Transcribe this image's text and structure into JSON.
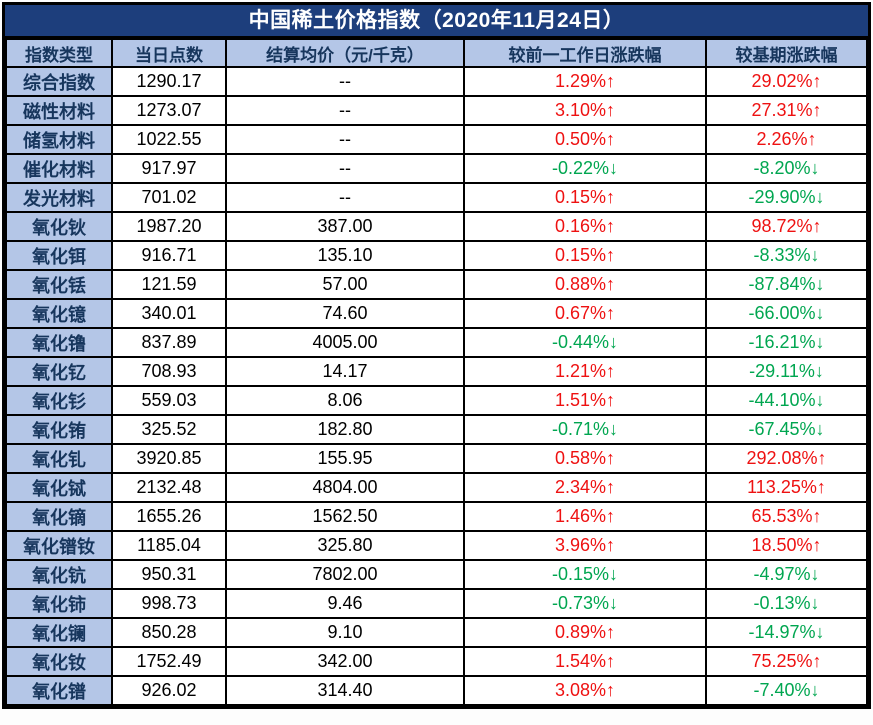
{
  "title": "中国稀土价格指数（2020年11月24日）",
  "colors": {
    "title_bg": "#1d3e7c",
    "header_bg": "#b4c6e7",
    "header_fg": "#17365d",
    "up_red": "#ee1111",
    "down_green": "#00a650",
    "border": "#000000"
  },
  "chart_data": {
    "type": "table",
    "title": "中国稀土价格指数（2020年11月24日）",
    "columns": [
      "指数类型",
      "当日点数",
      "结算均价（元/千克）",
      "较前一工作日涨跌幅",
      "较基期涨跌幅"
    ],
    "rows": [
      [
        "综合指数",
        "1290.17",
        "--",
        "1.29%↑",
        "29.02%↑"
      ],
      [
        "磁性材料",
        "1273.07",
        "--",
        "3.10%↑",
        "27.31%↑"
      ],
      [
        "储氢材料",
        "1022.55",
        "--",
        "0.50%↑",
        "2.26%↑"
      ],
      [
        "催化材料",
        "917.97",
        "--",
        "-0.22%↓",
        "-8.20%↓"
      ],
      [
        "发光材料",
        "701.02",
        "--",
        "0.15%↑",
        "-29.90%↓"
      ],
      [
        "氧化钬",
        "1987.20",
        "387.00",
        "0.16%↑",
        "98.72%↑"
      ],
      [
        "氧化铒",
        "916.71",
        "135.10",
        "0.15%↑",
        "-8.33%↓"
      ],
      [
        "氧化铥",
        "121.59",
        "57.00",
        "0.88%↑",
        "-87.84%↓"
      ],
      [
        "氧化镱",
        "340.01",
        "74.60",
        "0.67%↑",
        "-66.00%↓"
      ],
      [
        "氧化镥",
        "837.89",
        "4005.00",
        "-0.44%↓",
        "-16.21%↓"
      ],
      [
        "氧化钇",
        "708.93",
        "14.17",
        "1.21%↑",
        "-29.11%↓"
      ],
      [
        "氧化钐",
        "559.03",
        "8.06",
        "1.51%↑",
        "-44.10%↓"
      ],
      [
        "氧化铕",
        "325.52",
        "182.80",
        "-0.71%↓",
        "-67.45%↓"
      ],
      [
        "氧化钆",
        "3920.85",
        "155.95",
        "0.58%↑",
        "292.08%↑"
      ],
      [
        "氧化铽",
        "2132.48",
        "4804.00",
        "2.34%↑",
        "113.25%↑"
      ],
      [
        "氧化镝",
        "1655.26",
        "1562.50",
        "1.46%↑",
        "65.53%↑"
      ],
      [
        "氧化镨钕",
        "1185.04",
        "325.80",
        "3.96%↑",
        "18.50%↑"
      ],
      [
        "氧化钪",
        "950.31",
        "7802.00",
        "-0.15%↓",
        "-4.97%↓"
      ],
      [
        "氧化铈",
        "998.73",
        "9.46",
        "-0.73%↓",
        "-0.13%↓"
      ],
      [
        "氧化镧",
        "850.28",
        "9.10",
        "0.89%↑",
        "-14.97%↓"
      ],
      [
        "氧化钕",
        "1752.49",
        "342.00",
        "1.54%↑",
        "75.25%↑"
      ],
      [
        "氧化镨",
        "926.02",
        "314.40",
        "3.08%↑",
        "-7.40%↓"
      ]
    ]
  }
}
